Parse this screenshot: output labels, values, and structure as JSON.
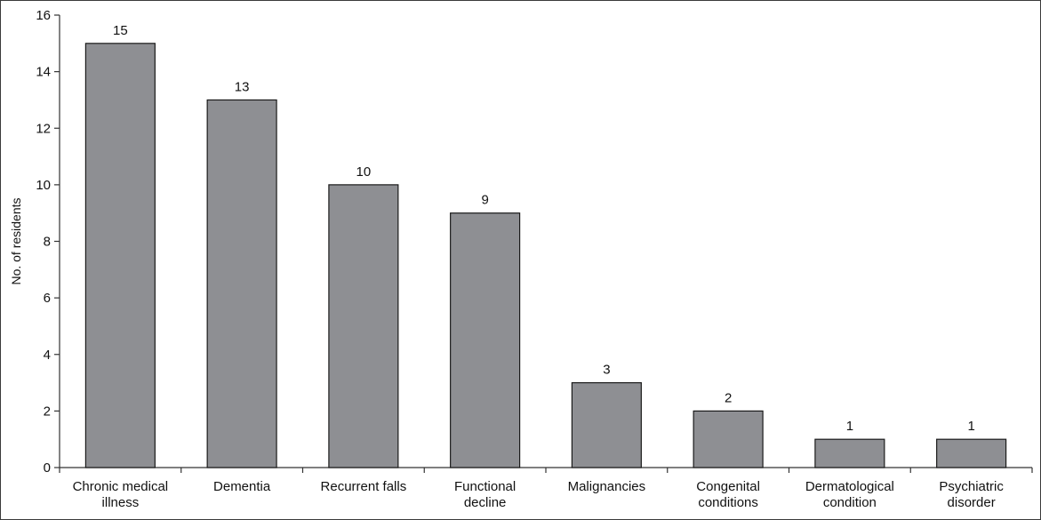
{
  "chart_data": {
    "type": "bar",
    "title": "",
    "xlabel": "",
    "ylabel": "No. of residents",
    "ylim": [
      0,
      16
    ],
    "yticks": [
      0,
      2,
      4,
      6,
      8,
      10,
      12,
      14,
      16
    ],
    "grid": false,
    "legend": "none",
    "categories": [
      [
        "Chronic medical",
        "illness"
      ],
      [
        "Dementia"
      ],
      [
        "Recurrent falls"
      ],
      [
        "Functional",
        "decline"
      ],
      [
        "Malignancies"
      ],
      [
        "Congenital",
        "conditions"
      ],
      [
        "Dermatological",
        "condition"
      ],
      [
        "Psychiatric",
        "disorder"
      ]
    ],
    "values": [
      15,
      13,
      10,
      9,
      3,
      2,
      1,
      1
    ],
    "data_labels": [
      "15",
      "13",
      "10",
      "9",
      "3",
      "2",
      "1",
      "1"
    ],
    "colors": {
      "bar_fill": "#8e8f93",
      "bar_stroke": "#1a1a1a",
      "axis": "#333333"
    }
  }
}
